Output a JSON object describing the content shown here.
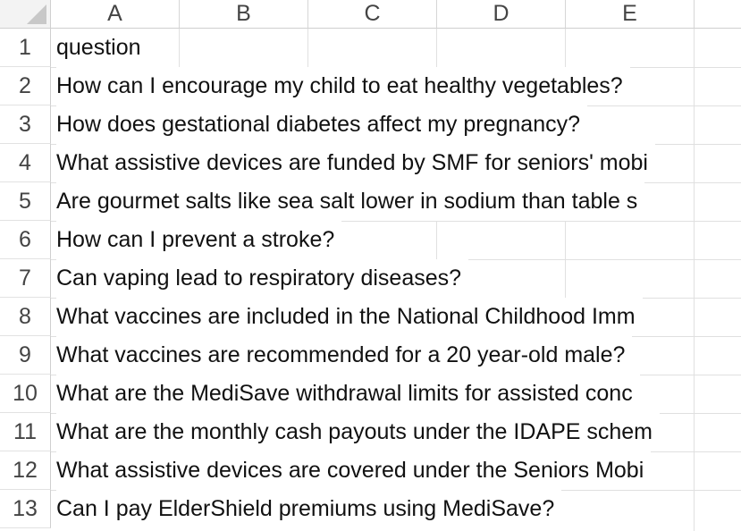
{
  "spreadsheet": {
    "columns": [
      "A",
      "B",
      "C",
      "D",
      "E"
    ],
    "rows": [
      {
        "num": "1",
        "a": "question"
      },
      {
        "num": "2",
        "a": "How can I encourage my child to eat healthy vegetables?"
      },
      {
        "num": "3",
        "a": "How does gestational diabetes affect my pregnancy?"
      },
      {
        "num": "4",
        "a": "What assistive devices are funded by SMF for seniors' mobi"
      },
      {
        "num": "5",
        "a": "Are gourmet salts like sea salt lower in sodium than table s"
      },
      {
        "num": "6",
        "a": "How can I prevent a stroke?"
      },
      {
        "num": "7",
        "a": "Can vaping lead to respiratory diseases?"
      },
      {
        "num": "8",
        "a": "What vaccines are included in the National Childhood Imm"
      },
      {
        "num": "9",
        "a": "What vaccines are recommended for a 20 year-old male?"
      },
      {
        "num": "10",
        "a": "What are the MediSave withdrawal limits for assisted conc"
      },
      {
        "num": "11",
        "a": "What are the monthly cash payouts under the IDAPE schem"
      },
      {
        "num": "12",
        "a": "What assistive devices are covered under the Seniors Mobi"
      },
      {
        "num": "13",
        "a": "Can I pay ElderShield premiums using MediSave?"
      }
    ]
  }
}
